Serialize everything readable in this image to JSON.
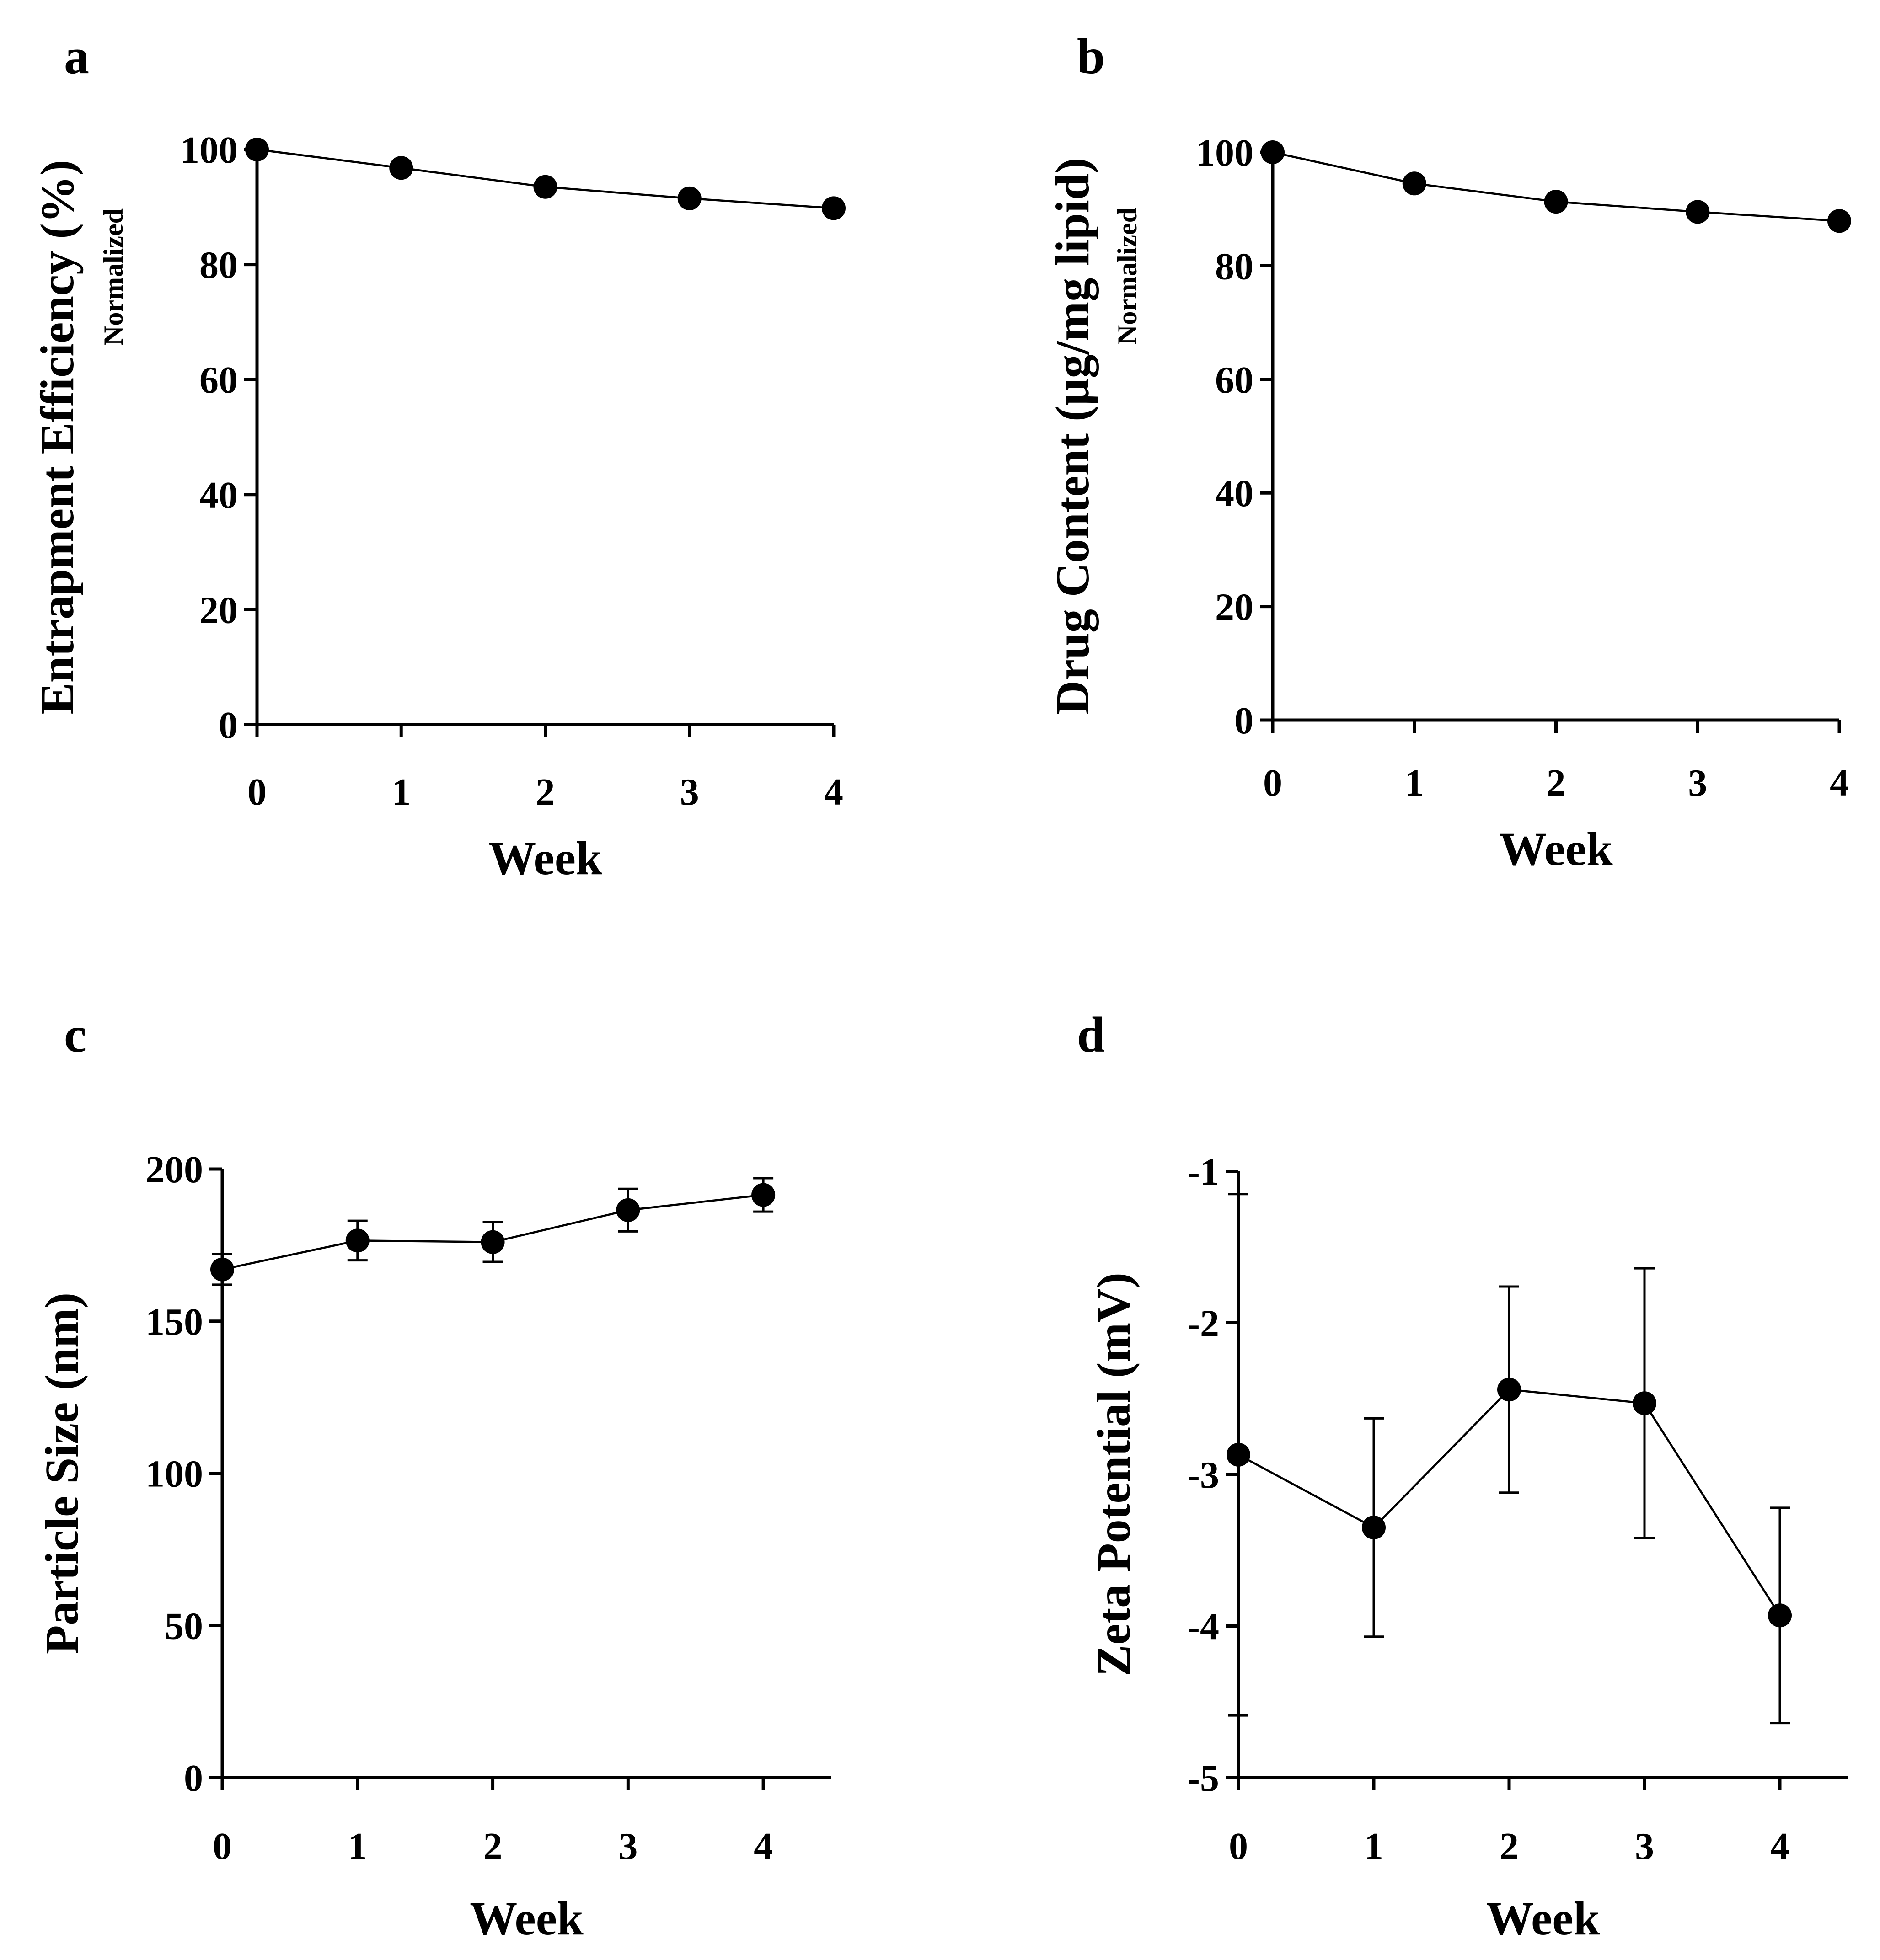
{
  "chart_data": [
    {
      "panel": "a",
      "type": "line",
      "title": "",
      "xlabel": "Week",
      "ylabel": "Entrapment Efficiency (%)",
      "ylabel_sub": "Normalized",
      "x": [
        0,
        1,
        2,
        3,
        4
      ],
      "series": [
        {
          "name": "Entrapment Efficiency",
          "values": [
            100,
            96.8,
            93.5,
            91.5,
            89.8
          ]
        }
      ],
      "xlim": [
        0,
        4
      ],
      "ylim": [
        0,
        100
      ],
      "xticks": [
        "0",
        "1",
        "2",
        "3",
        "4"
      ],
      "yticks": [
        "0",
        "20",
        "40",
        "60",
        "80",
        "100"
      ],
      "grid": false
    },
    {
      "panel": "b",
      "type": "line",
      "title": "",
      "xlabel": "Week",
      "ylabel": "Drug Content (µg/mg lipid)",
      "ylabel_sub": "Normalized",
      "x": [
        0,
        1,
        2,
        3,
        4
      ],
      "series": [
        {
          "name": "Drug Content",
          "values": [
            100,
            94.5,
            91.3,
            89.5,
            87.9
          ]
        }
      ],
      "xlim": [
        0,
        4
      ],
      "ylim": [
        0,
        100
      ],
      "xticks": [
        "0",
        "1",
        "2",
        "3",
        "4"
      ],
      "yticks": [
        "0",
        "20",
        "40",
        "60",
        "80",
        "100"
      ],
      "grid": false
    },
    {
      "panel": "c",
      "type": "line",
      "title": "",
      "xlabel": "Week",
      "ylabel": "Particle Size (nm)",
      "ylabel_sub": "",
      "x": [
        0,
        1,
        2,
        3,
        4
      ],
      "series": [
        {
          "name": "Particle Size",
          "values": [
            167,
            176.5,
            176,
            186.5,
            191.5
          ],
          "error": [
            5,
            6.5,
            6.5,
            7,
            5.5
          ]
        }
      ],
      "xlim": [
        0,
        4.5
      ],
      "ylim": [
        0,
        200
      ],
      "xticks": [
        "0",
        "1",
        "2",
        "3",
        "4"
      ],
      "yticks": [
        "0",
        "50",
        "100",
        "150",
        "200"
      ],
      "grid": false
    },
    {
      "panel": "d",
      "type": "line",
      "title": "",
      "xlabel": "Week",
      "ylabel": "Zeta Potential (mV)",
      "ylabel_sub": "",
      "x": [
        0,
        1,
        2,
        3,
        4
      ],
      "series": [
        {
          "name": "Zeta Potential",
          "values": [
            -2.87,
            -3.35,
            -2.44,
            -2.53,
            -3.93
          ],
          "error": [
            1.72,
            0.72,
            0.68,
            0.89,
            0.71
          ]
        }
      ],
      "xlim": [
        0,
        4.5
      ],
      "ylim": [
        -5,
        -1
      ],
      "xticks": [
        "0",
        "1",
        "2",
        "3",
        "4"
      ],
      "yticks": [
        "-5",
        "-4",
        "-3",
        "-2",
        "-1"
      ],
      "grid": false
    }
  ]
}
